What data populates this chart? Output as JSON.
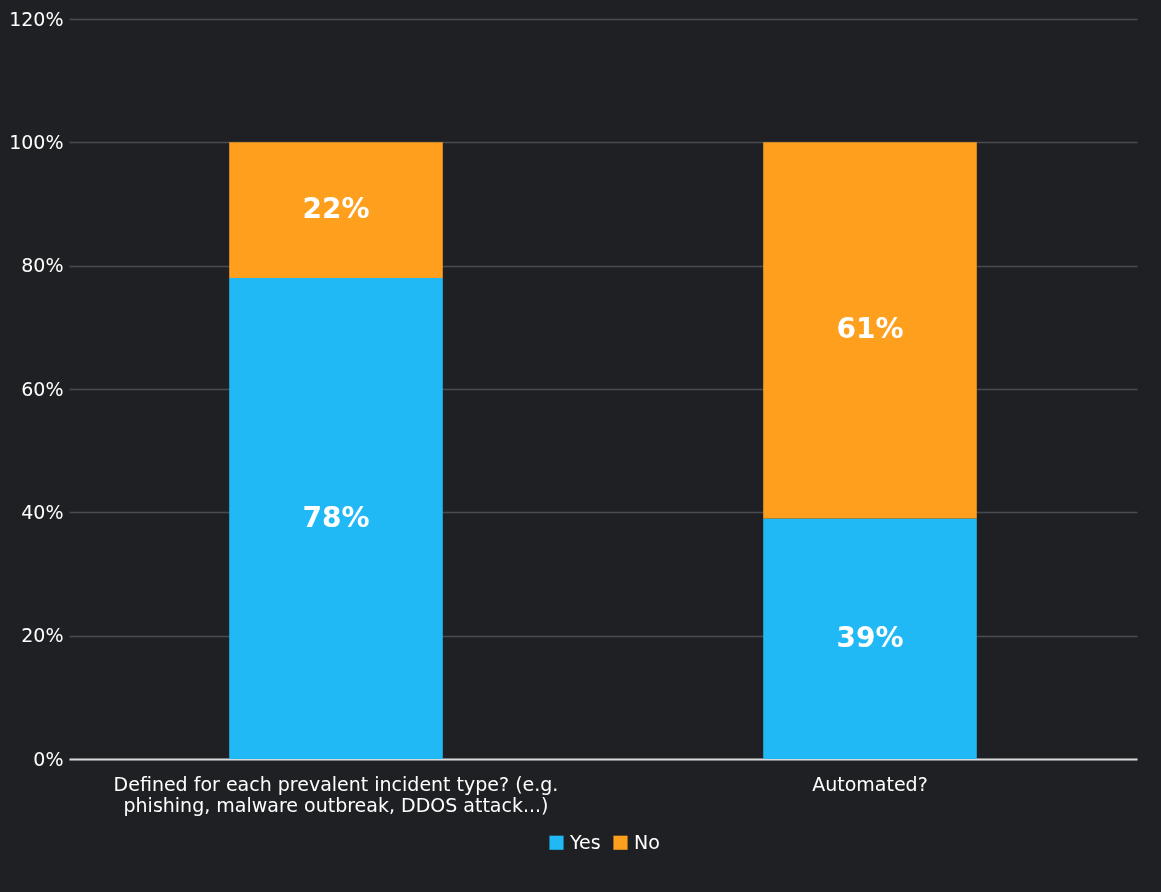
{
  "chart_data": {
    "type": "bar",
    "stacked": true,
    "categories": [
      "Defined for each prevalent incident type? (e.g. phishing, malware outbreak, DDOS attack...)",
      "Automated?"
    ],
    "series": [
      {
        "name": "Yes",
        "color": "#21b9f5",
        "values": [
          78,
          39
        ],
        "value_labels": [
          "78%",
          "39%"
        ]
      },
      {
        "name": "No",
        "color": "#ff9f1e",
        "values": [
          22,
          61
        ],
        "value_labels": [
          "22%",
          "61%"
        ]
      }
    ],
    "ylim": [
      0,
      120
    ],
    "yticks": [
      {
        "value": 0,
        "label": "0%"
      },
      {
        "value": 20,
        "label": "20%"
      },
      {
        "value": 40,
        "label": "40%"
      },
      {
        "value": 60,
        "label": "60%"
      },
      {
        "value": 80,
        "label": "80%"
      },
      {
        "value": 100,
        "label": "100%"
      },
      {
        "value": 120,
        "label": "120%"
      }
    ],
    "grid": "y",
    "legend": "bottom"
  }
}
